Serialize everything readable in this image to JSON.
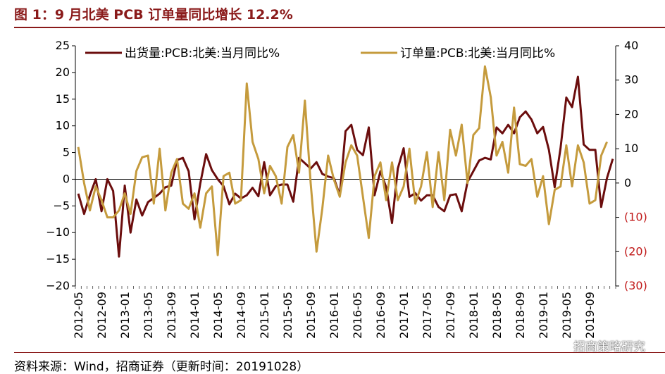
{
  "title": "图 1：9 月北美 PCB 订单量同比增长 12.2%",
  "source": "资料来源：Wind，招商证券（更新时间：20191028）",
  "watermark": "招商策略研究",
  "chart_data": {
    "type": "line",
    "x_tick_labels": [
      "2012-05",
      "2012-09",
      "2013-01",
      "2013-05",
      "2013-09",
      "2014-01",
      "2014-05",
      "2014-09",
      "2015-01",
      "2015-05",
      "2015-09",
      "2016-01",
      "2016-05",
      "2016-09",
      "2017-01",
      "2017-05",
      "2017-09",
      "2018-01",
      "2018-05",
      "2018-09",
      "2019-01",
      "2019-05",
      "2019-09"
    ],
    "left_axis": {
      "ylim": [
        -20,
        25
      ],
      "ticks": [
        "25",
        "20",
        "15",
        "10",
        "5",
        "0",
        "−5",
        "−10",
        "−15",
        "−20"
      ]
    },
    "right_axis": {
      "ylim": [
        -30,
        40
      ],
      "ticks": [
        "40",
        "30",
        "20",
        "10",
        "0",
        "(10)",
        "(20)",
        "(30)"
      ]
    },
    "series": [
      {
        "name": "出货量:PCB:北美:当月同比%",
        "axis": "left",
        "color": "#6b0d0d",
        "values": [
          -2.7,
          -6.5,
          -3.0,
          0.0,
          -6.0,
          0.0,
          -2.2,
          -14.5,
          -1.2,
          -10.0,
          -3.8,
          -6.8,
          -4.3,
          -3.5,
          -2.7,
          -1.5,
          -1.2,
          3.6,
          4.0,
          1.5,
          -7.5,
          -0.8,
          4.7,
          1.7,
          0.0,
          -1.3,
          -4.7,
          -2.7,
          -3.6,
          -3.0,
          -1.6,
          -3.2,
          3.2,
          -3.0,
          -1.3,
          -1.0,
          -1.0,
          -4.2,
          4.0,
          3.0,
          2.0,
          3.2,
          1.0,
          0.5,
          0.2,
          -3.0,
          9.0,
          10.2,
          5.5,
          4.5,
          9.7,
          -3.0,
          1.5,
          -1.5,
          -8.2,
          2.0,
          5.8,
          -3.3,
          -2.6,
          -4.0,
          -3.0,
          -3.0,
          -5.2,
          -6.0,
          -3.0,
          -2.8,
          -6.0,
          -0.5,
          1.5,
          3.5,
          4.0,
          3.7,
          9.7,
          8.6,
          10.2,
          8.6,
          11.6,
          12.7,
          11.2,
          8.6,
          9.8,
          5.5,
          -1.5,
          5.8,
          15.3,
          13.5,
          19.2,
          6.5,
          5.5,
          5.5,
          -5.2,
          0.2,
          3.8
        ]
      },
      {
        "name": "订单量:PCB:北美:当月同比%",
        "axis": "right",
        "color": "#c59b3d",
        "values": [
          10.5,
          0,
          -8,
          -1,
          -5,
          -10,
          -10,
          -8,
          -3,
          -9,
          3.5,
          7.5,
          8,
          -6,
          10,
          -8,
          3,
          7,
          -6,
          -7.5,
          -3,
          -13,
          -3,
          -1,
          -21,
          2,
          3,
          -6,
          -5,
          29,
          12,
          7,
          -3,
          5,
          2,
          -6,
          10.5,
          14,
          3,
          24,
          0,
          -20,
          -7.5,
          8,
          1,
          -4,
          6,
          11,
          8,
          -4,
          -16,
          2,
          6,
          -5,
          6,
          -5,
          -1,
          10,
          -6,
          -1,
          9,
          -7,
          9,
          -5,
          15.5,
          8,
          17,
          0,
          14,
          16,
          34,
          25,
          8,
          12,
          3,
          22,
          5.5,
          5,
          7,
          -4,
          2,
          -12,
          -2,
          -1,
          11,
          -1,
          11,
          6,
          -6,
          -5,
          8,
          12
        ]
      }
    ],
    "legend_placement": "top",
    "grid": false
  }
}
